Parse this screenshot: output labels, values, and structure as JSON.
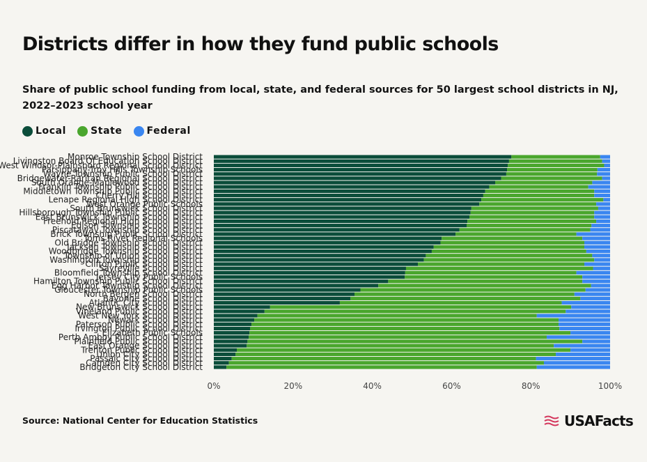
{
  "title": "Districts differ in how they fund public schools",
  "subtitle": "Share of public school funding from local, state, and federal sources for 50 largest school districts in NJ, 2022–2023 school year",
  "source": "Source: National Center for Education Statistics",
  "brand": {
    "name": "USAFacts",
    "icon": "flag-icon"
  },
  "colors": {
    "local": "#0b4d3a",
    "state": "#4aa62d",
    "federal": "#3a86f0",
    "background": "#f6f5f1",
    "brand_red": "#d4365c"
  },
  "chart_data": {
    "type": "bar",
    "orientation": "horizontal",
    "stacked": true,
    "xlim": [
      0,
      100
    ],
    "x_ticks": [
      "0%",
      "20%",
      "40%",
      "60%",
      "80%",
      "100%"
    ],
    "x_tick_values": [
      0,
      20,
      40,
      60,
      80,
      100
    ],
    "legend_position": "top-left",
    "grid": false,
    "categories": [
      "Monroe Township School District",
      "Livingston Board Of Education School District",
      "West Windsor-Plainsboro Regional School District",
      "Parsippany-Troy Hills Township Schools",
      "Wayne Township Public School District",
      "Bridgewater-Raritan Regional School District",
      "South Orange-Maplewood School District",
      "Franklin Township Public School District",
      "Middletown Township Public School District",
      "Cherry Hill School District",
      "Lenape Regional High School District",
      "West Orange Public Schools",
      "South Brunswick School District",
      "Hillsborough Township Public School District",
      "East Brunswick Township School District",
      "Freehold Regional High School District",
      "Edison Township School District",
      "Piscataway Township School District",
      "Brick Township Public School District",
      "Toms River Regional Schools",
      "Old Bridge Township School District",
      "Jackson Township School District",
      "Woodbridge Township School District",
      "Township of Union School District",
      "Washington Township School District",
      "Clifton Public School District",
      "Sayreville School District",
      "Bloomfield Township School District",
      "Jersey City Public Schools",
      "Hamilton Township Public School District",
      "Egg Harbor Township School District",
      "Gloucester Township Public Schools",
      "North Bergen School District",
      "Bayonne School District",
      "Atlantic City School District",
      "New Brunswick School District",
      "Vineland Public School District",
      "West New York School District",
      "Newark School District",
      "Paterson Public School District",
      "Irvington Public School District",
      "Elizabeth Public Schools",
      "Perth Amboy Public School District",
      "Plainfield Public School District",
      "East Orange School District",
      "Trenton Public School District",
      "Union City School District",
      "Passaic City School District",
      "Camden City School District",
      "Bridgeton City School District"
    ],
    "series": [
      {
        "name": "Local",
        "values": [
          75.1,
          74.5,
          74.2,
          74.0,
          73.8,
          72.5,
          71.0,
          69.5,
          68.5,
          68.0,
          67.5,
          67.0,
          65.0,
          64.8,
          64.5,
          64.0,
          63.8,
          62.0,
          61.0,
          57.5,
          57.2,
          55.5,
          55.0,
          53.5,
          53.0,
          51.5,
          48.5,
          48.3,
          48.2,
          44.0,
          41.5,
          37.0,
          35.5,
          34.5,
          31.8,
          14.2,
          12.8,
          11.0,
          10.2,
          9.5,
          9.2,
          9.0,
          8.8,
          8.5,
          8.3,
          5.8,
          5.5,
          4.5,
          3.8,
          3.2
        ]
      },
      {
        "name": "State",
        "values": [
          22.4,
          23.5,
          24.3,
          22.8,
          22.9,
          25.5,
          24.5,
          25.0,
          27.5,
          28.0,
          30.8,
          29.5,
          32.0,
          31.2,
          31.5,
          32.5,
          31.5,
          33.0,
          30.5,
          35.5,
          36.3,
          38.0,
          39.0,
          42.0,
          43.0,
          42.0,
          47.2,
          43.2,
          44.8,
          49.0,
          53.7,
          56.8,
          55.5,
          58.0,
          56.0,
          76.0,
          76.0,
          70.5,
          76.8,
          77.5,
          78.0,
          81.0,
          75.2,
          84.5,
          77.5,
          84.2,
          80.8,
          76.8,
          79.5,
          78.3
        ]
      },
      {
        "name": "Federal",
        "values": [
          2.5,
          2.0,
          1.5,
          3.2,
          3.3,
          2.0,
          4.5,
          5.5,
          4.0,
          4.0,
          1.7,
          3.5,
          3.0,
          4.0,
          4.0,
          3.5,
          4.7,
          5.0,
          8.5,
          7.0,
          6.5,
          6.5,
          6.0,
          4.5,
          4.0,
          6.5,
          4.3,
          8.5,
          7.0,
          7.0,
          4.8,
          6.2,
          9.0,
          7.5,
          12.2,
          9.8,
          11.2,
          18.5,
          13.0,
          13.0,
          12.8,
          10.0,
          16.0,
          7.0,
          14.2,
          10.0,
          13.7,
          18.7,
          16.7,
          18.5
        ]
      }
    ]
  }
}
